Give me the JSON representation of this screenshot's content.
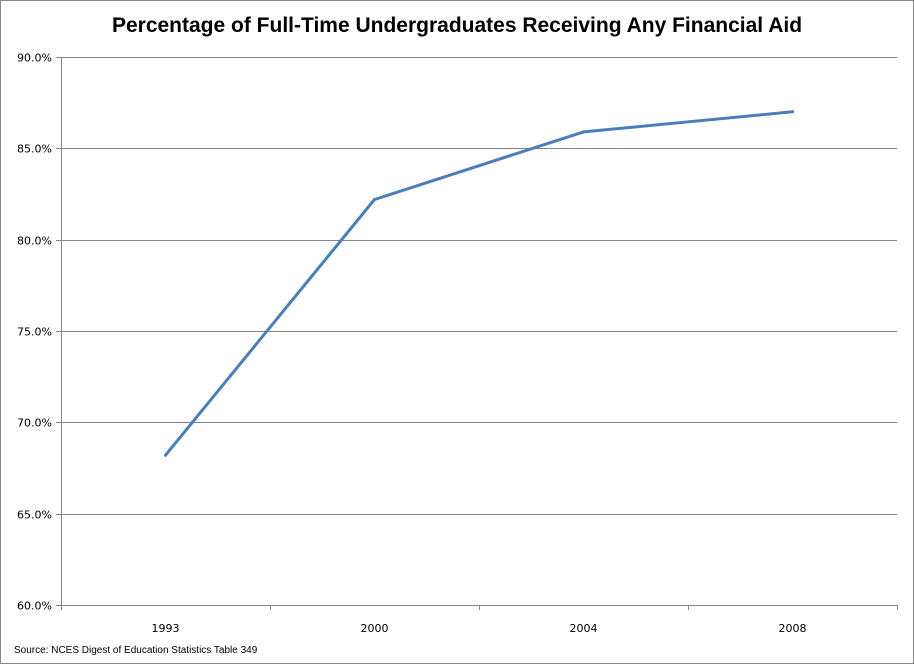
{
  "chart_data": {
    "type": "line",
    "title": "Percentage of Full-Time Undergraduates Receiving Any Financial Aid",
    "categories": [
      "1993",
      "2000",
      "2004",
      "2008"
    ],
    "series": [
      {
        "values": [
          68.2,
          82.2,
          85.9,
          87.0
        ],
        "color": "#4A7EBB"
      }
    ],
    "ylim": [
      60,
      90
    ],
    "yticks": [
      "60.0%",
      "65.0%",
      "70.0%",
      "75.0%",
      "80.0%",
      "85.0%",
      "90.0%"
    ],
    "ytick_values": [
      60,
      65,
      70,
      75,
      80,
      85,
      90
    ],
    "grid": true,
    "legend": "none",
    "xlabel": "",
    "ylabel": ""
  },
  "source": "Source: NCES Digest of Education Statistics Table 349"
}
